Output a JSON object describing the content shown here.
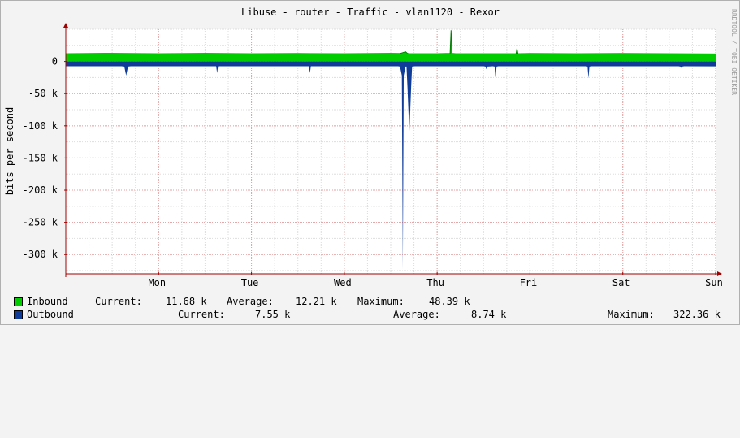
{
  "colors": {
    "canvas": "#f3f3f3",
    "plot_background": "#ffffff",
    "inbound": "#00cc00",
    "inbound_top": "#007f00",
    "outbound": "#0f3b99",
    "grid_major": "#e5a0a0",
    "grid_minor": "#dddddd",
    "axis": "#a00000"
  },
  "chart_data": {
    "type": "area",
    "title": "Libuse - router - Traffic - vlan1120 - Rexor",
    "ylabel": "bits per second",
    "watermark": "RRDTOOL / TOBI OETIKER",
    "ylim": [
      -330000,
      50000
    ],
    "y_ticks": [
      {
        "value": 0,
        "label": "0"
      },
      {
        "value": -50000,
        "label": "-50 k"
      },
      {
        "value": -100000,
        "label": "-100 k"
      },
      {
        "value": -150000,
        "label": "-150 k"
      },
      {
        "value": -200000,
        "label": "-200 k"
      },
      {
        "value": -250000,
        "label": "-250 k"
      },
      {
        "value": -300000,
        "label": "-300 k"
      }
    ],
    "x_range_days": [
      0,
      7
    ],
    "x_ticks": [
      {
        "value": 1,
        "label": "Mon"
      },
      {
        "value": 2,
        "label": "Tue"
      },
      {
        "value": 3,
        "label": "Wed"
      },
      {
        "value": 4,
        "label": "Thu"
      },
      {
        "value": 5,
        "label": "Fri"
      },
      {
        "value": 6,
        "label": "Sat"
      },
      {
        "value": 7,
        "label": "Sun"
      }
    ],
    "series": [
      {
        "name": "Inbound",
        "x_days": [
          0,
          0.5,
          1.0,
          1.5,
          2.0,
          2.5,
          3.0,
          3.5,
          3.6,
          3.66,
          3.68,
          3.7,
          4.0,
          4.14,
          4.15,
          4.16,
          4.2,
          4.5,
          4.85,
          4.86,
          4.87,
          5.0,
          5.5,
          6.0,
          6.5,
          7.0
        ],
        "values": [
          12000,
          12500,
          12000,
          12500,
          12000,
          12200,
          12000,
          12500,
          12300,
          15000,
          12500,
          12000,
          12000,
          12500,
          48390,
          12500,
          12000,
          12000,
          12000,
          20000,
          12000,
          12300,
          12000,
          12200,
          12000,
          11680
        ]
      },
      {
        "name": "Outbound",
        "x_days": [
          0,
          0.6,
          0.63,
          0.65,
          0.67,
          0.7,
          1.62,
          1.63,
          1.64,
          1.66,
          2.62,
          2.63,
          2.64,
          2.66,
          3.58,
          3.6,
          3.62,
          3.63,
          3.64,
          3.66,
          3.67,
          3.68,
          3.7,
          3.72,
          3.73,
          3.74,
          3.76,
          3.8,
          4.5,
          4.52,
          4.53,
          4.54,
          4.6,
          4.62,
          4.63,
          4.64,
          4.66,
          5.6,
          5.62,
          5.63,
          5.64,
          5.66,
          6.6,
          6.62,
          6.63,
          6.64,
          6.66,
          7.0
        ],
        "values": [
          -7500,
          -7500,
          -8000,
          -22000,
          -8000,
          -7500,
          -7500,
          -18000,
          -7500,
          -7500,
          -7500,
          -18000,
          -7500,
          -7500,
          -7500,
          -8000,
          -22000,
          -322360,
          -22000,
          -8000,
          -8000,
          -40000,
          -112000,
          -40000,
          -8000,
          -7800,
          -7500,
          -7500,
          -7500,
          -8000,
          -12000,
          -8000,
          -7500,
          -8000,
          -25000,
          -8000,
          -7500,
          -7500,
          -8000,
          -26000,
          -8000,
          -7500,
          -7500,
          -8000,
          -10000,
          -8000,
          -7500,
          -7550
        ]
      }
    ]
  },
  "legend": [
    {
      "name": "Inbound",
      "current_label": "Current:",
      "current_value": "11.68 k",
      "average_label": "Average:",
      "average_value": "12.21 k",
      "maximum_label": "Maximum:",
      "maximum_value": "48.39 k"
    },
    {
      "name": "Outbound",
      "current_label": "Current:",
      "current_value": "7.55 k",
      "average_label": "Average:",
      "average_value": "8.74 k",
      "maximum_label": "Maximum:",
      "maximum_value": "322.36 k"
    }
  ]
}
